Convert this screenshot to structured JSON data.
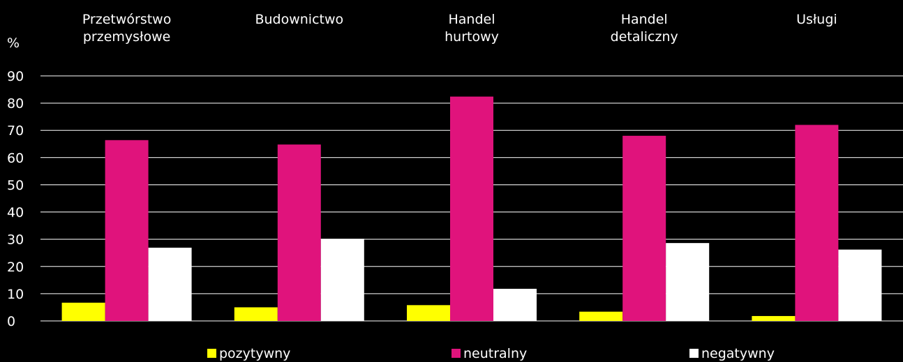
{
  "chart_data": {
    "type": "bar",
    "title": "",
    "xlabel": "",
    "ylabel": "%",
    "ylim": [
      0,
      90
    ],
    "yticks": [
      "0",
      "10",
      "20",
      "30",
      "40",
      "50",
      "60",
      "70",
      "80",
      "90"
    ],
    "grid": true,
    "legend_position": "bottom",
    "categories": [
      [
        "Przetwórstwo",
        "przemysłowe"
      ],
      [
        "Budownictwo"
      ],
      [
        "Handel",
        "hurtowy"
      ],
      [
        "Handel",
        "detaliczny"
      ],
      [
        "Usługi"
      ]
    ],
    "series": [
      {
        "name": "pozytywny",
        "color": "#ffff00",
        "values": [
          6.7,
          5.0,
          5.8,
          3.4,
          1.8
        ]
      },
      {
        "name": "neutralny",
        "color": "#e0137c",
        "values": [
          66.4,
          64.8,
          82.4,
          68.0,
          72.0
        ]
      },
      {
        "name": "negatywny",
        "color": "#ffffff",
        "values": [
          26.9,
          30.2,
          11.8,
          28.6,
          26.2
        ]
      }
    ]
  }
}
